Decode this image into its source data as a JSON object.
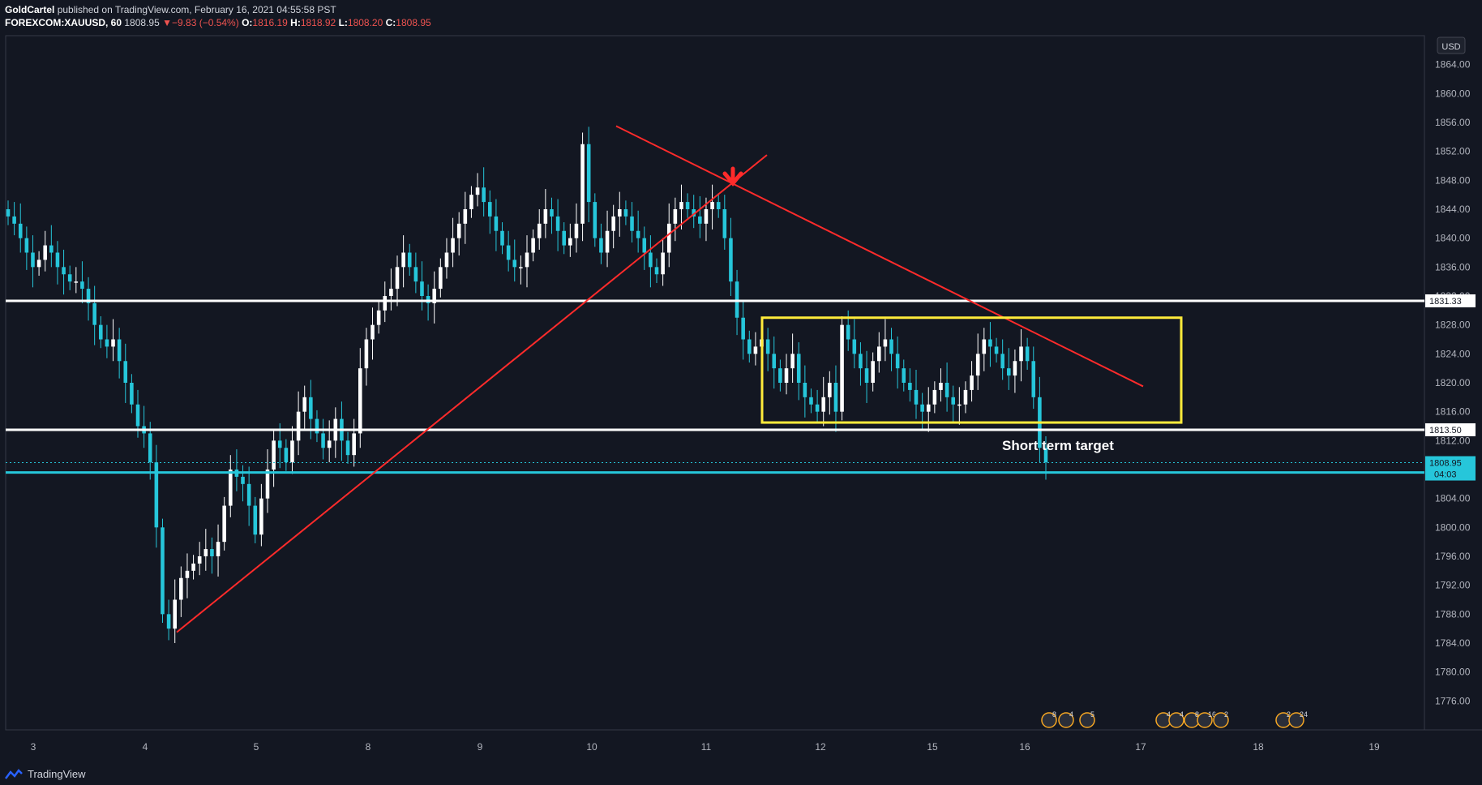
{
  "header": {
    "publisher": "GoldCartel",
    "published_text": "published on TradingView.com, February 16, 2021 04:55:58 PST",
    "symbol": "FOREXCOM:XAUUSD, 60",
    "last": "1808.95",
    "change": "−9.83 (−0.54%)",
    "o_label": "O:",
    "o": "1816.19",
    "h_label": "H:",
    "h": "1818.92",
    "l_label": "L:",
    "l": "1808.20",
    "c_label": "C:",
    "c": "1808.95"
  },
  "currency_label": "USD",
  "footer_brand": "TradingView",
  "chart_data": {
    "type": "candlestick",
    "y_range": [
      1772,
      1868
    ],
    "y_ticks": [
      "1776.00",
      "1780.00",
      "1784.00",
      "1788.00",
      "1792.00",
      "1796.00",
      "1800.00",
      "1804.00",
      "1808.00",
      "1812.00",
      "1816.00",
      "1820.00",
      "1824.00",
      "1828.00",
      "1832.00",
      "1836.00",
      "1840.00",
      "1844.00",
      "1848.00",
      "1852.00",
      "1856.00",
      "1860.00",
      "1864.00"
    ],
    "x_labels": [
      "3",
      "4",
      "5",
      "8",
      "9",
      "10",
      "11",
      "12",
      "15",
      "16",
      "17",
      "18",
      "19"
    ],
    "candles_close_path": [
      1843,
      1842,
      1840,
      1838,
      1836,
      1837,
      1839,
      1838,
      1836,
      1835,
      1834,
      1834,
      1833,
      1831,
      1828,
      1826,
      1825,
      1826,
      1823,
      1820,
      1817,
      1814,
      1813,
      1809,
      1800,
      1788,
      1786,
      1790,
      1793,
      1794,
      1795,
      1796,
      1797,
      1796,
      1798,
      1803,
      1808,
      1807,
      1806,
      1803,
      1799,
      1804,
      1808,
      1812,
      1811,
      1809,
      1812,
      1816,
      1818,
      1815,
      1813,
      1811,
      1812,
      1815,
      1812,
      1810,
      1813,
      1822,
      1826,
      1828,
      1830,
      1832,
      1833,
      1836,
      1838,
      1836,
      1834,
      1832,
      1831,
      1833,
      1836,
      1838,
      1840,
      1842,
      1844,
      1846,
      1847,
      1845,
      1843,
      1841,
      1839,
      1837,
      1836,
      1836,
      1838,
      1840,
      1842,
      1844,
      1843,
      1841,
      1839,
      1840,
      1842,
      1853,
      1845,
      1840,
      1838,
      1841,
      1843,
      1844,
      1843,
      1841,
      1840,
      1838,
      1836,
      1835,
      1838,
      1842,
      1844,
      1845,
      1844,
      1843,
      1842,
      1844,
      1845,
      1844,
      1840,
      1834,
      1829,
      1826,
      1824,
      1825,
      1826,
      1824,
      1822,
      1820,
      1822,
      1824,
      1820,
      1818,
      1817,
      1816,
      1818,
      1820,
      1816,
      1828,
      1826,
      1824,
      1822,
      1820,
      1823,
      1825,
      1826,
      1824,
      1822,
      1820,
      1819,
      1817,
      1816,
      1817,
      1819,
      1820,
      1818,
      1817,
      1817,
      1819,
      1821,
      1824,
      1826,
      1825,
      1824,
      1822,
      1821,
      1823,
      1825,
      1823,
      1818,
      1811,
      1809
    ],
    "horizontal_levels": [
      {
        "price": 1831.33,
        "label": "1831.33",
        "color": "#ffffff"
      },
      {
        "price": 1813.5,
        "label": "1813.50",
        "color": "#ffffff"
      },
      {
        "price": 1807.6,
        "label": "1807.60",
        "color": "#26c6da"
      }
    ],
    "last_price": {
      "price": 1808.95,
      "label": "1808.95",
      "countdown": "04:03"
    },
    "annotations": {
      "target_text": "Short term target",
      "box_color": "#ffeb3b",
      "trend_color": "#ff2b2b",
      "arrow_color": "#ff2b2b"
    },
    "colors": {
      "up": "#ffffff",
      "down": "#26c6da",
      "bg": "#131722",
      "grid": "#2a2e39"
    },
    "event_badges": [
      "8",
      "4",
      "5",
      "4",
      "4",
      "8",
      "16",
      "2",
      "2",
      "24"
    ]
  }
}
